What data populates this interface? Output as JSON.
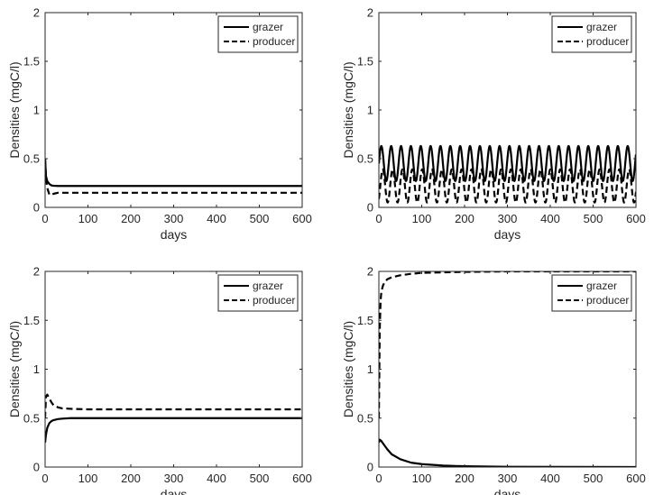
{
  "chart_data": [
    {
      "type": "line",
      "xlabel": "days",
      "ylabel": "Densities (mgC/l)",
      "xlim": [
        0,
        600
      ],
      "ylim": [
        0,
        2
      ],
      "xticks": [
        "0",
        "100",
        "200",
        "300",
        "400",
        "500",
        "600"
      ],
      "yticks": [
        "0",
        "0.5",
        "1",
        "1.5",
        "2"
      ],
      "legend_position": "top-right",
      "grid": false,
      "series": [
        {
          "name": "grazer",
          "style": "solid",
          "x": [
            0,
            2,
            5,
            10,
            15,
            20,
            30,
            50,
            100,
            600
          ],
          "y": [
            0.5,
            0.32,
            0.27,
            0.24,
            0.225,
            0.222,
            0.22,
            0.22,
            0.22,
            0.22
          ]
        },
        {
          "name": "producer",
          "style": "dashed",
          "x": [
            0,
            2,
            5,
            10,
            15,
            20,
            30,
            50,
            100,
            600
          ],
          "y": [
            0.5,
            0.3,
            0.2,
            0.13,
            0.13,
            0.14,
            0.15,
            0.15,
            0.15,
            0.15
          ]
        }
      ]
    },
    {
      "type": "line",
      "xlabel": "days",
      "ylabel": "Densities (mgC/l)",
      "xlim": [
        0,
        600
      ],
      "ylim": [
        0,
        2
      ],
      "xticks": [
        "0",
        "100",
        "200",
        "300",
        "400",
        "500",
        "600"
      ],
      "yticks": [
        "0",
        "0.5",
        "1",
        "1.5",
        "2"
      ],
      "legend_position": "top-right",
      "grid": false,
      "series": [
        {
          "name": "grazer",
          "style": "solid",
          "oscillation": {
            "period_days": 23,
            "min": 0.27,
            "max": 0.63
          }
        },
        {
          "name": "producer",
          "style": "dashed",
          "oscillation": {
            "period_days": 23,
            "min": 0.05,
            "max": 0.39
          }
        }
      ]
    },
    {
      "type": "line",
      "xlabel": "days",
      "ylabel": "Densities (mgC/l)",
      "xlim": [
        0,
        600
      ],
      "ylim": [
        0,
        2
      ],
      "xticks": [
        "0",
        "100",
        "200",
        "300",
        "400",
        "500",
        "600"
      ],
      "yticks": [
        "0",
        "0.5",
        "1",
        "1.5",
        "2"
      ],
      "legend_position": "top-right",
      "grid": false,
      "series": [
        {
          "name": "grazer",
          "style": "solid",
          "x": [
            0,
            2,
            5,
            10,
            15,
            20,
            30,
            40,
            60,
            100,
            600
          ],
          "y": [
            0.25,
            0.33,
            0.4,
            0.45,
            0.47,
            0.48,
            0.49,
            0.495,
            0.5,
            0.5,
            0.5
          ]
        },
        {
          "name": "producer",
          "style": "dashed",
          "x": [
            0,
            2,
            5,
            10,
            15,
            20,
            30,
            40,
            60,
            100,
            600
          ],
          "y": [
            0.5,
            0.72,
            0.74,
            0.7,
            0.66,
            0.63,
            0.61,
            0.6,
            0.595,
            0.59,
            0.59
          ]
        }
      ]
    },
    {
      "type": "line",
      "xlabel": "days",
      "ylabel": "Densities (mgC/l)",
      "xlim": [
        0,
        600
      ],
      "ylim": [
        0,
        2
      ],
      "xticks": [
        "0",
        "100",
        "200",
        "300",
        "400",
        "500",
        "600"
      ],
      "yticks": [
        "0",
        "0.5",
        "1",
        "1.5",
        "2"
      ],
      "legend_position": "top-right",
      "grid": false,
      "series": [
        {
          "name": "grazer",
          "style": "solid",
          "x": [
            0,
            2,
            5,
            10,
            20,
            30,
            50,
            75,
            100,
            150,
            200,
            300,
            600
          ],
          "y": [
            0.25,
            0.28,
            0.27,
            0.24,
            0.18,
            0.13,
            0.08,
            0.045,
            0.03,
            0.015,
            0.008,
            0.003,
            0.0
          ]
        },
        {
          "name": "producer",
          "style": "dashed",
          "x": [
            0,
            2,
            4,
            6,
            10,
            15,
            20,
            30,
            50,
            75,
            100,
            150,
            200,
            300,
            600
          ],
          "y": [
            0.5,
            1.4,
            1.7,
            1.8,
            1.86,
            1.9,
            1.92,
            1.94,
            1.96,
            1.975,
            1.985,
            1.99,
            1.995,
            2.0,
            2.0
          ]
        }
      ]
    }
  ]
}
